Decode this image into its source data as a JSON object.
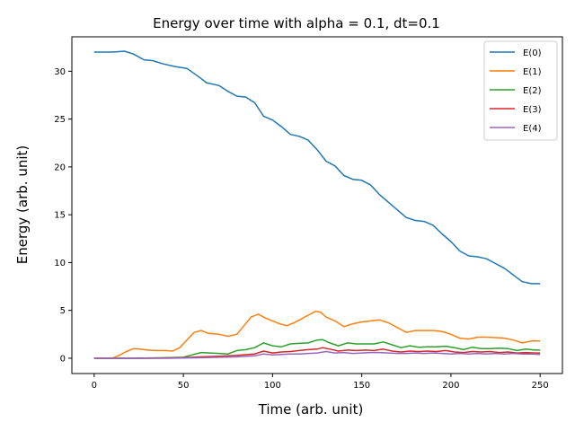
{
  "chart_data": {
    "type": "line",
    "title": "Energy over time with alpha = 0.1, dt=0.1",
    "xlabel": "Time (arb. unit)",
    "ylabel": "Energy (arb. unit)",
    "xlim": [
      -12.5,
      262.5
    ],
    "ylim": [
      -1.6,
      33.6
    ],
    "xticks": [
      0,
      50,
      100,
      150,
      200,
      250
    ],
    "yticks": [
      0,
      5,
      10,
      15,
      20,
      25,
      30
    ],
    "grid": false,
    "legend_position": "top-right",
    "series": [
      {
        "name": "E(0)",
        "color": "#1f77b4",
        "x": [
          0,
          10,
          17,
          22,
          28,
          33,
          38,
          45,
          52,
          58,
          63,
          70,
          75,
          80,
          85,
          90,
          95,
          100,
          105,
          110,
          115,
          120,
          125,
          130,
          135,
          140,
          145,
          150,
          155,
          160,
          165,
          170,
          175,
          180,
          185,
          190,
          195,
          200,
          205,
          210,
          215,
          220,
          225,
          230,
          235,
          240,
          245,
          250
        ],
        "y": [
          32.0,
          32.0,
          32.1,
          31.8,
          31.2,
          31.1,
          30.8,
          30.5,
          30.3,
          29.5,
          28.8,
          28.5,
          27.9,
          27.4,
          27.3,
          26.7,
          25.3,
          24.9,
          24.2,
          23.4,
          23.2,
          22.8,
          21.8,
          20.6,
          20.1,
          19.1,
          18.7,
          18.6,
          18.1,
          17.1,
          16.3,
          15.5,
          14.7,
          14.4,
          14.3,
          13.9,
          13.0,
          12.2,
          11.2,
          10.7,
          10.6,
          10.4,
          9.9,
          9.4,
          8.7,
          8.0,
          7.8,
          7.8
        ]
      },
      {
        "name": "E(1)",
        "color": "#ff7f0e",
        "x": [
          0,
          10,
          14,
          18,
          22,
          26,
          30,
          35,
          40,
          44,
          48,
          52,
          56,
          60,
          64,
          70,
          75,
          80,
          84,
          88,
          92,
          96,
          100,
          104,
          108,
          112,
          116,
          120,
          124,
          127,
          130,
          135,
          140,
          145,
          150,
          155,
          160,
          165,
          170,
          175,
          180,
          185,
          190,
          195,
          200,
          205,
          210,
          215,
          220,
          225,
          230,
          235,
          240,
          245,
          250
        ],
        "y": [
          0.0,
          0.0,
          0.3,
          0.7,
          1.0,
          0.95,
          0.85,
          0.8,
          0.8,
          0.75,
          1.1,
          1.9,
          2.7,
          2.9,
          2.6,
          2.5,
          2.3,
          2.5,
          3.4,
          4.3,
          4.6,
          4.2,
          3.9,
          3.6,
          3.4,
          3.7,
          4.1,
          4.5,
          4.9,
          4.8,
          4.3,
          3.9,
          3.3,
          3.6,
          3.8,
          3.9,
          4.0,
          3.7,
          3.2,
          2.7,
          2.9,
          2.9,
          2.9,
          2.8,
          2.5,
          2.1,
          2.0,
          2.2,
          2.2,
          2.15,
          2.1,
          1.9,
          1.6,
          1.8,
          1.8
        ]
      },
      {
        "name": "E(2)",
        "color": "#2ca02c",
        "x": [
          0,
          20,
          40,
          50,
          55,
          60,
          65,
          70,
          75,
          80,
          85,
          90,
          95,
          100,
          105,
          110,
          115,
          120,
          125,
          128,
          132,
          137,
          142,
          147,
          152,
          157,
          162,
          167,
          172,
          177,
          182,
          187,
          192,
          197,
          202,
          207,
          212,
          217,
          222,
          227,
          232,
          237,
          242,
          247,
          250
        ],
        "y": [
          0.0,
          0.0,
          0.05,
          0.1,
          0.35,
          0.6,
          0.55,
          0.5,
          0.45,
          0.8,
          0.9,
          1.1,
          1.6,
          1.3,
          1.2,
          1.5,
          1.55,
          1.6,
          1.9,
          1.95,
          1.6,
          1.3,
          1.6,
          1.5,
          1.5,
          1.5,
          1.7,
          1.4,
          1.1,
          1.3,
          1.15,
          1.2,
          1.2,
          1.25,
          1.1,
          0.9,
          1.15,
          1.0,
          1.0,
          1.05,
          1.0,
          0.8,
          0.95,
          0.85,
          0.85
        ]
      },
      {
        "name": "E(3)",
        "color": "#d62728",
        "x": [
          0,
          30,
          50,
          60,
          70,
          80,
          90,
          95,
          100,
          105,
          110,
          115,
          120,
          125,
          128,
          132,
          137,
          142,
          147,
          152,
          157,
          162,
          167,
          172,
          177,
          182,
          187,
          192,
          197,
          202,
          207,
          212,
          217,
          222,
          227,
          232,
          237,
          242,
          247,
          250
        ],
        "y": [
          0.0,
          0.0,
          0.05,
          0.15,
          0.2,
          0.3,
          0.45,
          0.75,
          0.55,
          0.65,
          0.7,
          0.8,
          0.9,
          0.95,
          1.1,
          0.95,
          0.75,
          0.85,
          0.8,
          0.85,
          0.8,
          0.95,
          0.75,
          0.65,
          0.75,
          0.7,
          0.75,
          0.7,
          0.8,
          0.65,
          0.6,
          0.7,
          0.65,
          0.7,
          0.6,
          0.65,
          0.55,
          0.6,
          0.55,
          0.55
        ]
      },
      {
        "name": "E(4)",
        "color": "#9467bd",
        "x": [
          0,
          40,
          60,
          80,
          90,
          95,
          100,
          105,
          110,
          115,
          120,
          125,
          130,
          135,
          140,
          145,
          150,
          155,
          160,
          165,
          170,
          175,
          180,
          185,
          190,
          195,
          200,
          205,
          210,
          215,
          220,
          225,
          230,
          235,
          240,
          245,
          250
        ],
        "y": [
          0.0,
          0.0,
          0.05,
          0.15,
          0.25,
          0.45,
          0.35,
          0.4,
          0.45,
          0.45,
          0.5,
          0.55,
          0.7,
          0.55,
          0.6,
          0.5,
          0.55,
          0.6,
          0.6,
          0.55,
          0.5,
          0.5,
          0.55,
          0.5,
          0.55,
          0.5,
          0.45,
          0.5,
          0.45,
          0.5,
          0.45,
          0.5,
          0.45,
          0.5,
          0.45,
          0.45,
          0.4
        ]
      }
    ]
  }
}
